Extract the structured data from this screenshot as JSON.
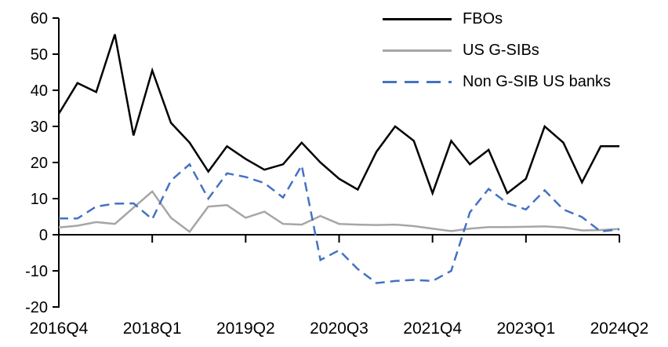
{
  "chart_data": {
    "type": "line",
    "title": "",
    "xlabel": "",
    "ylabel": "",
    "ylim": [
      -20,
      60
    ],
    "y_ticks": [
      60,
      50,
      40,
      30,
      20,
      10,
      0,
      -10,
      -20
    ],
    "x_tick_indices": [
      0,
      5,
      10,
      15,
      20,
      25,
      30
    ],
    "x_tick_labels": [
      "2016Q4",
      "2018Q1",
      "2019Q2",
      "2020Q3",
      "2021Q4",
      "2023Q1",
      "2024Q2"
    ],
    "grid": false,
    "legend_position": "top-right",
    "categories": [
      "2016Q4",
      "2017Q1",
      "2017Q2",
      "2017Q3",
      "2017Q4",
      "2018Q1",
      "2018Q2",
      "2018Q3",
      "2018Q4",
      "2019Q1",
      "2019Q2",
      "2019Q3",
      "2019Q4",
      "2020Q1",
      "2020Q2",
      "2020Q3",
      "2020Q4",
      "2021Q1",
      "2021Q2",
      "2021Q3",
      "2021Q4",
      "2022Q1",
      "2022Q2",
      "2022Q3",
      "2022Q4",
      "2023Q1",
      "2023Q2",
      "2023Q3",
      "2023Q4",
      "2024Q1",
      "2024Q2"
    ],
    "series": [
      {
        "name": "FBOs",
        "color": "#000000",
        "style": "solid",
        "values": [
          33.5,
          42,
          39.5,
          55.5,
          27.5,
          45.5,
          31,
          25.5,
          17.5,
          24.5,
          21,
          18,
          19.5,
          25.5,
          20,
          15.5,
          12.5,
          23,
          30,
          26,
          11.5,
          26,
          19.5,
          23.5,
          11.5,
          15.5,
          30,
          25.5,
          14.5,
          24.5,
          24.5
        ]
      },
      {
        "name": "US G-SIBs",
        "color": "#a6a6a6",
        "style": "solid",
        "values": [
          2,
          2.5,
          3.5,
          3,
          7.5,
          12,
          4.7,
          0.8,
          7.8,
          8.2,
          4.7,
          6.4,
          3,
          2.8,
          5.2,
          3,
          2.8,
          2.7,
          2.8,
          2.4,
          1.7,
          1,
          1.7,
          2.1,
          2.1,
          2.2,
          2.3,
          2,
          1.2,
          1.3,
          1.6
        ]
      },
      {
        "name": "Non G-SIB US banks",
        "color": "#4472c4",
        "style": "dashed",
        "values": [
          4.5,
          4.5,
          7.8,
          8.6,
          8.7,
          4.3,
          15,
          19.5,
          10,
          17,
          16,
          14.3,
          10.3,
          19.2,
          -7,
          -4.3,
          -9.5,
          -13.4,
          -12.8,
          -12.5,
          -12.8,
          -10,
          6.2,
          12.7,
          8.7,
          7,
          12.3,
          7,
          4.9,
          0.9,
          1.5
        ]
      }
    ]
  },
  "layout_colors": {
    "axis": "#000000",
    "background": "#ffffff"
  }
}
